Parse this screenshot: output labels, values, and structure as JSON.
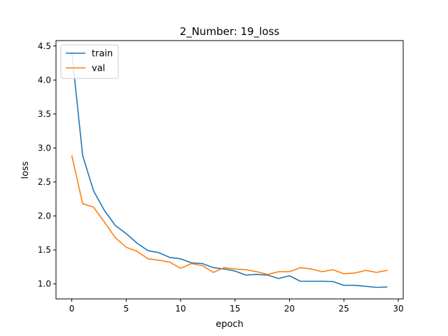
{
  "chart_data": {
    "type": "line",
    "title": "2_Number: 19_loss",
    "xlabel": "epoch",
    "ylabel": "loss",
    "xlim": [
      -1.45,
      30.45
    ],
    "ylim": [
      0.78,
      4.58
    ],
    "xticks": [
      0,
      5,
      10,
      15,
      20,
      25,
      30
    ],
    "yticks": [
      1.0,
      1.5,
      2.0,
      2.5,
      3.0,
      3.5,
      4.0,
      4.5
    ],
    "xtick_labels": [
      "0",
      "5",
      "10",
      "15",
      "20",
      "25",
      "30"
    ],
    "ytick_labels": [
      "1.0",
      "1.5",
      "2.0",
      "2.5",
      "3.0",
      "3.5",
      "4.0",
      "4.5"
    ],
    "grid": false,
    "legend_position": "upper-left",
    "x": [
      0,
      1,
      2,
      3,
      4,
      5,
      6,
      7,
      8,
      9,
      10,
      11,
      12,
      13,
      14,
      15,
      16,
      17,
      18,
      19,
      20,
      21,
      22,
      23,
      24,
      25,
      26,
      27,
      28,
      29
    ],
    "series": [
      {
        "name": "train",
        "color": "#1f77b4",
        "values": [
          4.41,
          2.89,
          2.37,
          2.08,
          1.86,
          1.74,
          1.6,
          1.49,
          1.46,
          1.39,
          1.37,
          1.31,
          1.3,
          1.24,
          1.22,
          1.19,
          1.13,
          1.14,
          1.13,
          1.08,
          1.12,
          1.04,
          1.04,
          1.04,
          1.035,
          0.98,
          0.98,
          0.965,
          0.95,
          0.955
        ]
      },
      {
        "name": "val",
        "color": "#ff7f0e",
        "values": [
          2.89,
          2.18,
          2.13,
          1.91,
          1.68,
          1.54,
          1.48,
          1.37,
          1.35,
          1.32,
          1.23,
          1.3,
          1.27,
          1.17,
          1.24,
          1.22,
          1.21,
          1.18,
          1.14,
          1.18,
          1.18,
          1.24,
          1.22,
          1.18,
          1.21,
          1.15,
          1.16,
          1.2,
          1.17,
          1.2
        ]
      }
    ]
  }
}
